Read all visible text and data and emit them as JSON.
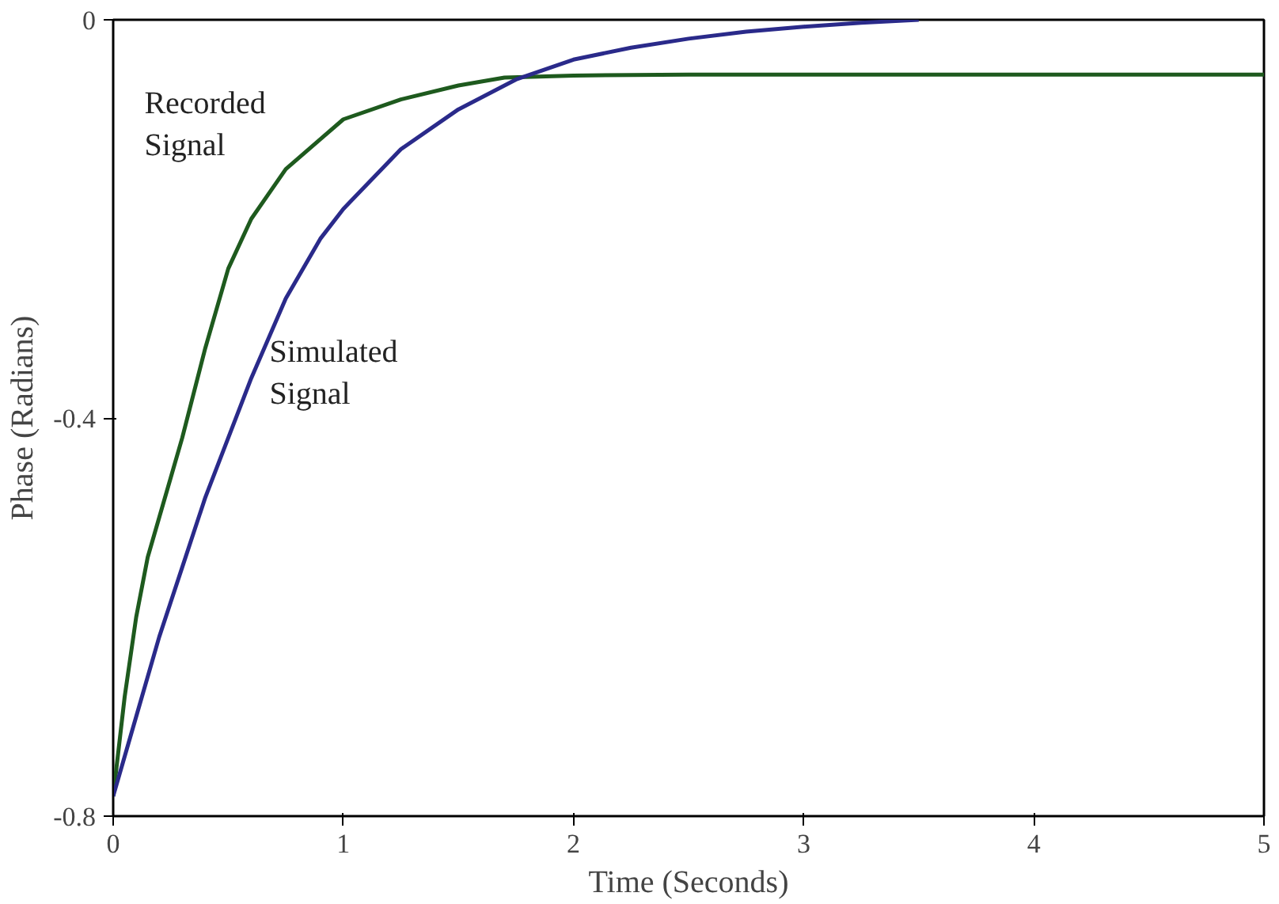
{
  "chart_data": {
    "type": "line",
    "xlabel": "Time (Seconds)",
    "ylabel": "Phase (Radians)",
    "xlim": [
      0,
      5
    ],
    "ylim": [
      -0.8,
      0
    ],
    "xticks": [
      0,
      1,
      2,
      3,
      4,
      5
    ],
    "yticks": [
      {
        "value": -0.8,
        "label": "-0.8"
      },
      {
        "value": -0.4,
        "label": "-0.4"
      },
      0
    ],
    "grid": false,
    "marker": "none",
    "line_style": "solid",
    "series": [
      {
        "name": "Recorded Signal",
        "color": "#1e5a1e",
        "x": [
          0,
          0.05,
          0.1,
          0.15,
          0.2,
          0.25,
          0.3,
          0.4,
          0.5,
          0.6,
          0.75,
          0.9,
          1.0,
          1.25,
          1.5,
          1.7,
          2.0,
          2.5,
          3.0,
          3.5,
          4.0,
          4.5,
          5.0
        ],
        "values": [
          -0.78,
          -0.68,
          -0.6,
          -0.54,
          -0.5,
          -0.46,
          -0.42,
          -0.33,
          -0.25,
          -0.2,
          -0.15,
          -0.12,
          -0.1,
          -0.08,
          -0.066,
          -0.058,
          -0.056,
          -0.055,
          -0.055,
          -0.055,
          -0.055,
          -0.055,
          -0.055
        ]
      },
      {
        "name": "Simulated Signal",
        "color": "#2a2a8a",
        "x": [
          0,
          0.1,
          0.2,
          0.3,
          0.4,
          0.5,
          0.6,
          0.75,
          0.9,
          1.0,
          1.25,
          1.5,
          1.75,
          2.0,
          2.25,
          2.5,
          2.75,
          3.0,
          3.25,
          3.5
        ],
        "values": [
          -0.78,
          -0.7,
          -0.62,
          -0.55,
          -0.48,
          -0.42,
          -0.36,
          -0.28,
          -0.22,
          -0.19,
          -0.13,
          -0.09,
          -0.06,
          -0.04,
          -0.028,
          -0.019,
          -0.012,
          -0.007,
          -0.003,
          0
        ]
      }
    ]
  }
}
